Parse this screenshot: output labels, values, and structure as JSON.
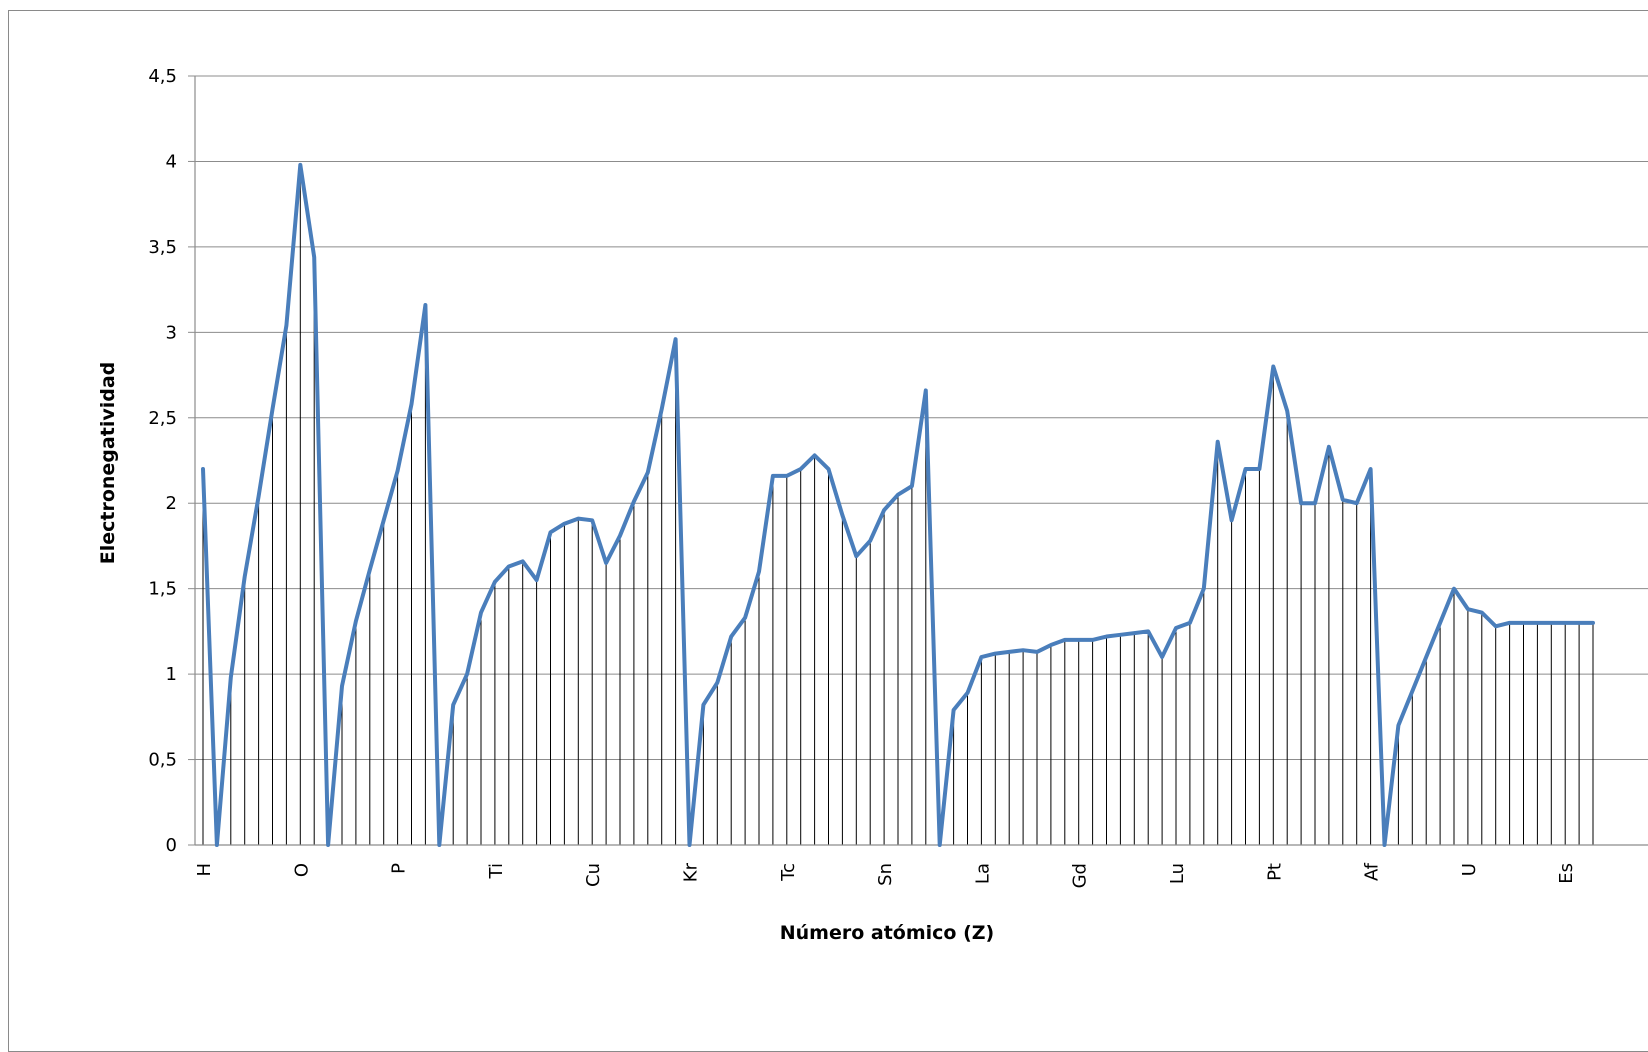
{
  "chart_data": {
    "type": "line",
    "title": "",
    "xlabel": "Número atómico (Z)",
    "ylabel": "Electronegatividad",
    "ylim": [
      0,
      4.5
    ],
    "y_ticks": [
      0,
      0.5,
      1,
      1.5,
      2,
      2.5,
      3,
      3.5,
      4,
      4.5
    ],
    "y_tick_labels": [
      "0",
      "0,5",
      "1",
      "1,5",
      "2",
      "2,5",
      "3",
      "3,5",
      "4",
      "4,5"
    ],
    "x_tick_labels": [
      {
        "z": 1,
        "label": "H"
      },
      {
        "z": 8,
        "label": "O"
      },
      {
        "z": 15,
        "label": "P"
      },
      {
        "z": 22,
        "label": "Ti"
      },
      {
        "z": 29,
        "label": "Cu"
      },
      {
        "z": 36,
        "label": "Kr"
      },
      {
        "z": 43,
        "label": "Tc"
      },
      {
        "z": 50,
        "label": "Sn"
      },
      {
        "z": 57,
        "label": "La"
      },
      {
        "z": 64,
        "label": "Gd"
      },
      {
        "z": 71,
        "label": "Lu"
      },
      {
        "z": 78,
        "label": "Pt"
      },
      {
        "z": 85,
        "label": "Af"
      },
      {
        "z": 92,
        "label": "U"
      },
      {
        "z": 99,
        "label": "Es"
      }
    ],
    "grid": true,
    "drop_lines": true,
    "line_color": "#4a7ebb",
    "gridline_color": "#8c8c8c",
    "x": [
      1,
      2,
      3,
      4,
      5,
      6,
      7,
      8,
      9,
      10,
      11,
      12,
      13,
      14,
      15,
      16,
      17,
      18,
      19,
      20,
      21,
      22,
      23,
      24,
      25,
      26,
      27,
      28,
      29,
      30,
      31,
      32,
      33,
      34,
      35,
      36,
      37,
      38,
      39,
      40,
      41,
      42,
      43,
      44,
      45,
      46,
      47,
      48,
      49,
      50,
      51,
      52,
      53,
      54,
      55,
      56,
      57,
      58,
      59,
      60,
      61,
      62,
      63,
      64,
      65,
      66,
      67,
      68,
      69,
      70,
      71,
      72,
      73,
      74,
      75,
      76,
      77,
      78,
      79,
      80,
      81,
      82,
      83,
      84,
      85,
      86,
      87,
      88,
      89,
      90,
      91,
      92,
      93,
      94,
      95,
      96,
      97,
      98,
      99,
      100,
      101
    ],
    "series": [
      {
        "values": [
          2.2,
          0,
          0.98,
          1.57,
          2.04,
          2.55,
          3.04,
          3.98,
          3.44,
          0,
          0.93,
          1.31,
          1.61,
          1.9,
          2.19,
          2.58,
          3.16,
          0,
          0.82,
          1.0,
          1.36,
          1.54,
          1.63,
          1.66,
          1.55,
          1.83,
          1.88,
          1.91,
          1.9,
          1.65,
          1.81,
          2.01,
          2.18,
          2.55,
          2.96,
          0,
          0.82,
          0.95,
          1.22,
          1.33,
          1.6,
          2.16,
          2.16,
          2.2,
          2.28,
          2.2,
          1.93,
          1.69,
          1.78,
          1.96,
          2.05,
          2.1,
          2.66,
          0,
          0.79,
          0.89,
          1.1,
          1.12,
          1.13,
          1.14,
          1.13,
          1.17,
          1.2,
          1.2,
          1.2,
          1.22,
          1.23,
          1.24,
          1.25,
          1.1,
          1.27,
          1.3,
          1.5,
          2.36,
          1.9,
          2.2,
          2.2,
          2.8,
          2.54,
          2.0,
          2.0,
          2.33,
          2.02,
          2.0,
          2.2,
          0,
          0.7,
          0.9,
          1.1,
          1.3,
          1.5,
          1.38,
          1.36,
          1.28,
          1.3,
          1.3,
          1.3,
          1.3,
          1.3,
          1.3,
          1.3
        ]
      }
    ]
  }
}
